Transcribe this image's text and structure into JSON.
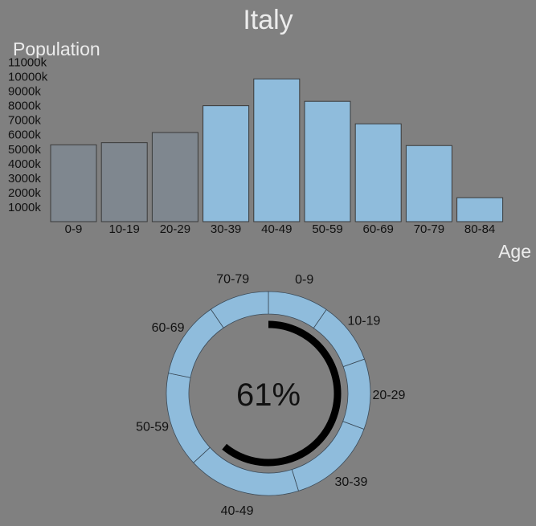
{
  "chart_data": [
    {
      "type": "bar",
      "title": "Italy",
      "ylabel": "Population",
      "xlabel": "Age",
      "categories": [
        "0-9",
        "10-19",
        "20-29",
        "30-39",
        "40-49",
        "50-59",
        "60-69",
        "70-79",
        "80-84"
      ],
      "values": [
        5300,
        5450,
        6150,
        8000,
        9850,
        8300,
        6750,
        5250,
        1650
      ],
      "highlighted": [
        false,
        false,
        false,
        true,
        true,
        true,
        true,
        true,
        true
      ],
      "yticks": [
        "1000k",
        "2000k",
        "3000k",
        "4000k",
        "5000k",
        "6000k",
        "7000k",
        "8000k",
        "9000k",
        "10000k",
        "11000k"
      ],
      "ylim": [
        0,
        11000
      ],
      "colors": {
        "normal": "#7f878f",
        "highlight": "#8fbcdc"
      }
    },
    {
      "type": "pie",
      "labels": [
        "0-9",
        "10-19",
        "20-29",
        "30-39",
        "40-49",
        "50-59",
        "60-69",
        "70-79"
      ],
      "values": [
        5300,
        5450,
        6150,
        8000,
        9850,
        8300,
        6750,
        5250
      ],
      "center_text": "61%",
      "progress": 0.61,
      "colors": {
        "ring": "#8fbcdc",
        "progress": "#000000"
      }
    }
  ]
}
